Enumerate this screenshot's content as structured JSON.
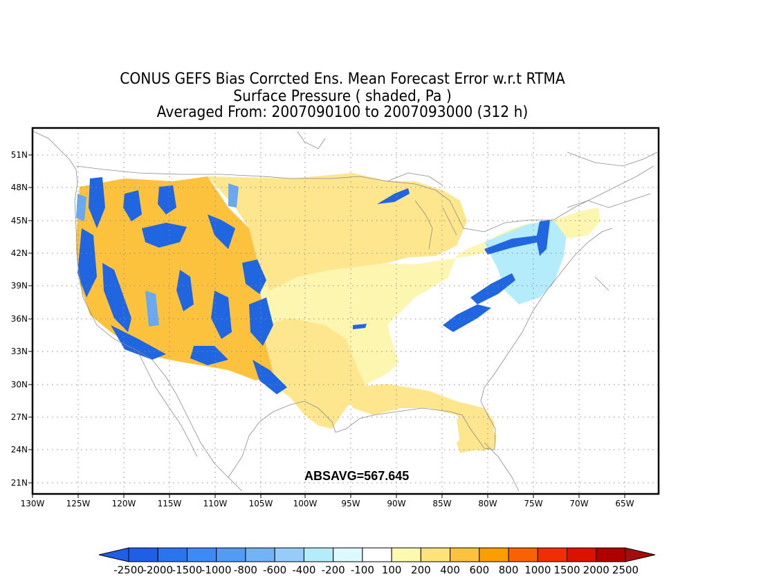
{
  "title": {
    "line1": "CONUS GEFS Bias Corrcted Ens. Mean Forecast Error w.r.t RTMA",
    "line2": "Surface Pressure ( shaded, Pa )",
    "line3": "Averaged From: 2007090100 to 2007093000 (312 h)"
  },
  "map": {
    "latitude_labels": [
      "51N",
      "48N",
      "45N",
      "42N",
      "39N",
      "36N",
      "33N",
      "30N",
      "27N",
      "24N",
      "21N"
    ],
    "longitude_labels": [
      "130W",
      "125W",
      "120W",
      "115W",
      "110W",
      "105W",
      "100W",
      "95W",
      "90W",
      "85W",
      "80W",
      "75W",
      "70W",
      "65W"
    ],
    "statistic": "ABSAVG=567.645"
  },
  "colorbar": {
    "labels": [
      "-2500",
      "-2000",
      "-1500",
      "-1000",
      "-800",
      "-600",
      "-400",
      "-200",
      "-100",
      "100",
      "200",
      "400",
      "600",
      "800",
      "1000",
      "1500",
      "2000",
      "2500"
    ],
    "colors": [
      "#1f5fe6",
      "#2a74ee",
      "#3b8af5",
      "#529cf5",
      "#72b2f7",
      "#97cbfa",
      "#b4ecfb",
      "#def9fe",
      "#ffffff",
      "#fef9b0",
      "#fee27a",
      "#fcc13d",
      "#fc9e00",
      "#f96200",
      "#f12e00",
      "#dc1200",
      "#b00000"
    ],
    "low_arrow_color": "#1f5fe6",
    "high_arrow_color": "#a50c0c"
  },
  "colors": {
    "frame": "#000000",
    "grid": "#8a8a8a",
    "coast": "#8a8a8a",
    "land_blue": "#1f66e0",
    "land_lightblue": "#6aa8f2",
    "land_yellow": "#fde68e",
    "land_paleyellow": "#fdf6b0",
    "land_orange": "#fca128"
  }
}
